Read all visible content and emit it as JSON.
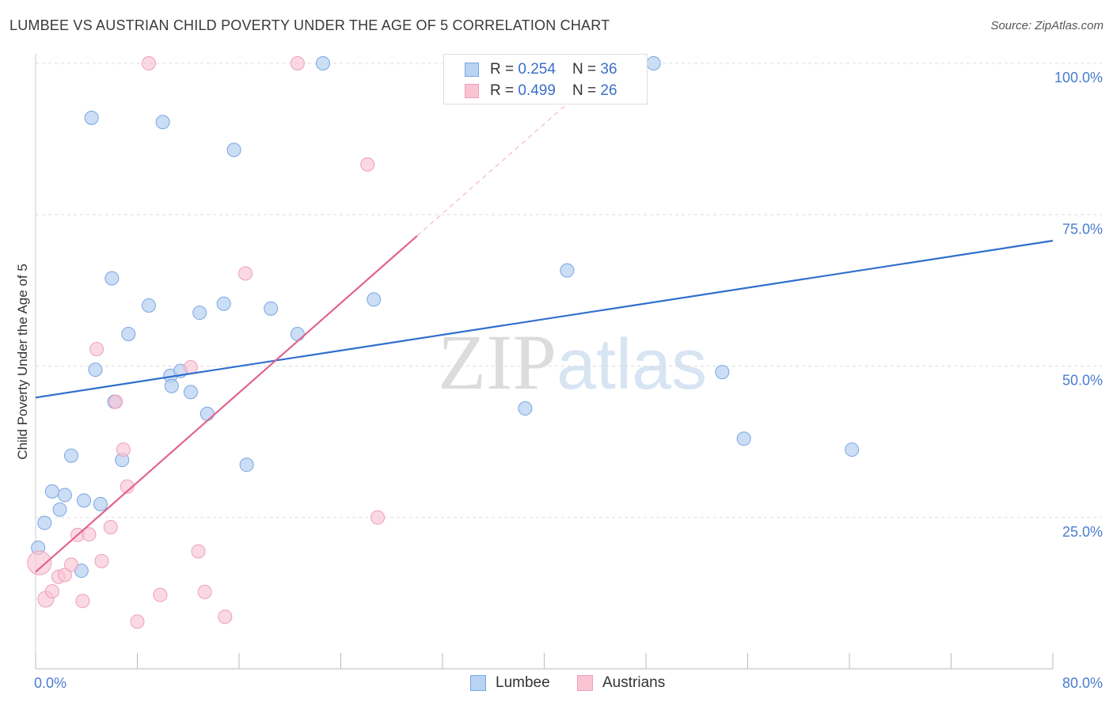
{
  "header": {
    "title": "LUMBEE VS AUSTRIAN CHILD POVERTY UNDER THE AGE OF 5 CORRELATION CHART",
    "source": "Source: ZipAtlas.com"
  },
  "legend": {
    "rows": [
      {
        "r_label": "R = ",
        "r_value": "0.254",
        "n_label": "N = ",
        "n_value": "36"
      },
      {
        "r_label": "R = ",
        "r_value": "0.499",
        "n_label": "N = ",
        "n_value": "26"
      }
    ]
  },
  "bottom_legend": {
    "lumbee": "Lumbee",
    "austrians": "Austrians"
  },
  "watermark": {
    "zip": "ZIP",
    "atlas": "atlas"
  },
  "colors": {
    "lumbee_fill": "#b9d3f3",
    "lumbee_stroke": "#7aa6e0",
    "lumbee_line": "#2f6fce",
    "austrians_fill": "#f9c4d4",
    "austrians_stroke": "#ee9fb8",
    "austrians_line": "#e2628e",
    "tick_label": "#4a7ccf",
    "grid": "#dddddd"
  },
  "chart_data": {
    "type": "scatter",
    "title": "LUMBEE VS AUSTRIAN CHILD POVERTY UNDER THE AGE OF 5 CORRELATION CHART",
    "xlabel": "",
    "ylabel": "Child Poverty Under the Age of 5",
    "xlim": [
      0,
      80
    ],
    "ylim": [
      0,
      100
    ],
    "x_tick_labels": [
      "0.0%",
      "80.0%"
    ],
    "y_ticks": [
      25,
      50,
      75,
      100
    ],
    "y_tick_labels": [
      "25.0%",
      "50.0%",
      "75.0%",
      "100.0%"
    ],
    "grid": true,
    "series": [
      {
        "name": "Lumbee",
        "r": 0.254,
        "n": 36,
        "trend": {
          "x": [
            0,
            80
          ],
          "y": [
            44.8,
            70.7
          ]
        },
        "points": [
          {
            "x": 0.2,
            "y": 20.0
          },
          {
            "x": 0.7,
            "y": 24.1
          },
          {
            "x": 1.3,
            "y": 29.3
          },
          {
            "x": 1.9,
            "y": 26.3
          },
          {
            "x": 2.3,
            "y": 28.7
          },
          {
            "x": 2.8,
            "y": 35.2
          },
          {
            "x": 3.6,
            "y": 16.2
          },
          {
            "x": 3.8,
            "y": 27.8
          },
          {
            "x": 4.4,
            "y": 91.0
          },
          {
            "x": 4.7,
            "y": 49.4
          },
          {
            "x": 5.1,
            "y": 27.2
          },
          {
            "x": 6.0,
            "y": 64.5
          },
          {
            "x": 6.2,
            "y": 44.1
          },
          {
            "x": 6.8,
            "y": 34.5
          },
          {
            "x": 7.3,
            "y": 55.3
          },
          {
            "x": 8.9,
            "y": 60.0
          },
          {
            "x": 10.0,
            "y": 90.3
          },
          {
            "x": 10.6,
            "y": 48.4
          },
          {
            "x": 10.7,
            "y": 46.7
          },
          {
            "x": 11.4,
            "y": 49.2
          },
          {
            "x": 12.2,
            "y": 45.7
          },
          {
            "x": 12.9,
            "y": 58.8
          },
          {
            "x": 13.5,
            "y": 42.1
          },
          {
            "x": 14.8,
            "y": 60.3
          },
          {
            "x": 15.6,
            "y": 85.7
          },
          {
            "x": 16.6,
            "y": 33.7
          },
          {
            "x": 18.5,
            "y": 59.5
          },
          {
            "x": 20.6,
            "y": 55.3
          },
          {
            "x": 22.6,
            "y": 100.0
          },
          {
            "x": 26.6,
            "y": 61.0
          },
          {
            "x": 38.5,
            "y": 43.0
          },
          {
            "x": 41.8,
            "y": 65.8
          },
          {
            "x": 48.6,
            "y": 100.0
          },
          {
            "x": 54.0,
            "y": 49.0
          },
          {
            "x": 55.7,
            "y": 38.0
          },
          {
            "x": 64.2,
            "y": 36.2
          }
        ]
      },
      {
        "name": "Austrians",
        "r": 0.499,
        "n": 26,
        "trend": {
          "x": [
            0,
            30
          ],
          "y": [
            16.0,
            71.5
          ]
        },
        "trend_dashed": {
          "x": [
            30,
            44.0
          ],
          "y": [
            71.5,
            97.4
          ]
        },
        "points": [
          {
            "x": 0.3,
            "y": 17.5
          },
          {
            "x": 0.8,
            "y": 11.5
          },
          {
            "x": 1.3,
            "y": 12.8
          },
          {
            "x": 1.8,
            "y": 15.2
          },
          {
            "x": 2.3,
            "y": 15.5
          },
          {
            "x": 2.8,
            "y": 17.2
          },
          {
            "x": 3.3,
            "y": 22.1
          },
          {
            "x": 3.7,
            "y": 11.2
          },
          {
            "x": 4.2,
            "y": 22.2
          },
          {
            "x": 4.8,
            "y": 52.8
          },
          {
            "x": 5.2,
            "y": 17.8
          },
          {
            "x": 5.9,
            "y": 23.4
          },
          {
            "x": 6.3,
            "y": 44.1
          },
          {
            "x": 6.9,
            "y": 36.2
          },
          {
            "x": 7.2,
            "y": 30.1
          },
          {
            "x": 8.0,
            "y": 7.8
          },
          {
            "x": 8.9,
            "y": 100.0
          },
          {
            "x": 9.8,
            "y": 12.2
          },
          {
            "x": 12.2,
            "y": 49.8
          },
          {
            "x": 12.8,
            "y": 19.4
          },
          {
            "x": 13.3,
            "y": 12.7
          },
          {
            "x": 14.9,
            "y": 8.6
          },
          {
            "x": 16.5,
            "y": 65.3
          },
          {
            "x": 20.6,
            "y": 100.0
          },
          {
            "x": 26.1,
            "y": 83.3
          },
          {
            "x": 26.9,
            "y": 25.0
          }
        ]
      }
    ]
  }
}
